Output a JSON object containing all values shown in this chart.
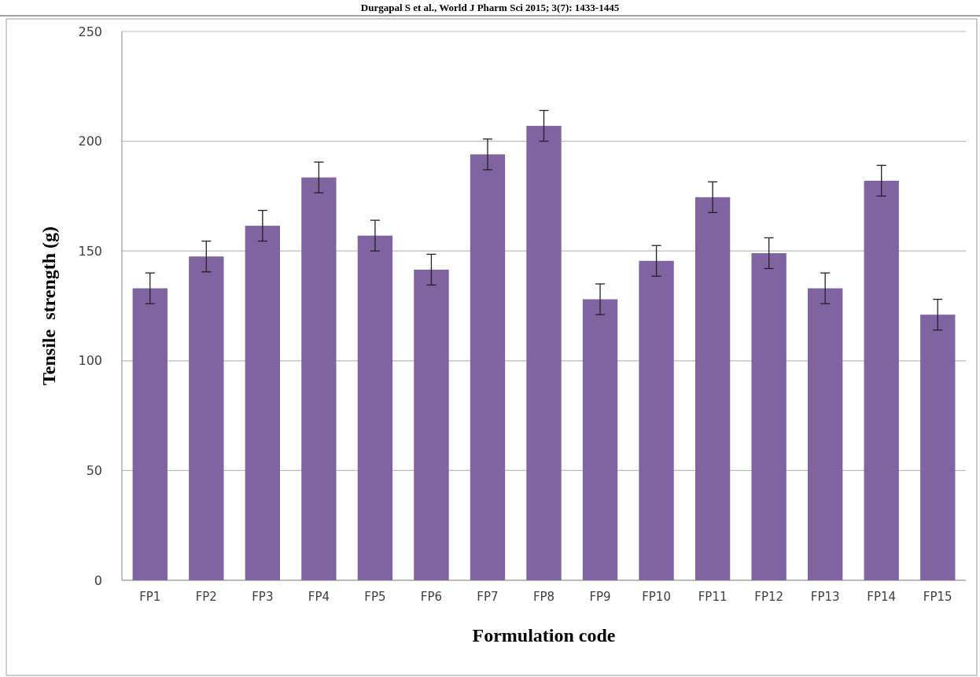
{
  "chart_data": {
    "type": "bar",
    "categories": [
      "FP1",
      "FP2",
      "FP3",
      "FP4",
      "FP5",
      "FP6",
      "FP7",
      "FP8",
      "FP9",
      "FP10",
      "FP11",
      "FP12",
      "FP13",
      "FP14",
      "FP15"
    ],
    "values": [
      133,
      147.5,
      161.5,
      183.5,
      157,
      141.5,
      194,
      207,
      128,
      145.5,
      174.5,
      149,
      133,
      182,
      121
    ],
    "errors": [
      7,
      7,
      7,
      7,
      7,
      7,
      7,
      7,
      7,
      7,
      7,
      7,
      7,
      7,
      7
    ],
    "color": "#8064a2",
    "xlabel": "Formulation code",
    "ylabel": "Tensile  strength (g)",
    "ylim": [
      0,
      250
    ],
    "yticks": [
      0,
      50,
      100,
      150,
      200,
      250
    ],
    "grid": "y",
    "annotations": [
      "Durgapal S et al., World J Pharm Sci 2015; 3(7): 1433-1445"
    ]
  }
}
